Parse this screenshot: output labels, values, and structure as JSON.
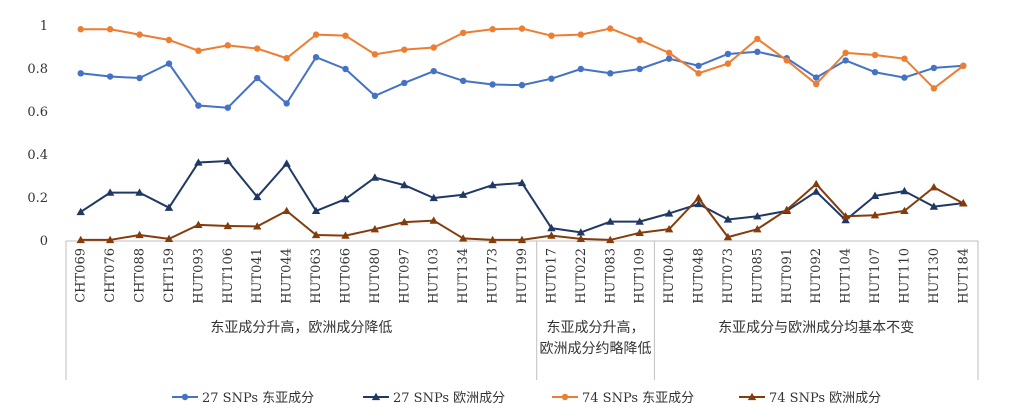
{
  "chart_data": {
    "type": "line",
    "ylim": [
      0,
      1
    ],
    "yticks": [
      0,
      0.2,
      0.4,
      0.6,
      0.8,
      1
    ],
    "ytick_labels": [
      "0",
      "0.2",
      "0.4",
      "0.6",
      "0.8",
      "1"
    ],
    "grid": false,
    "legend_position": "bottom",
    "categories": [
      "CHT069",
      "CHT076",
      "CHT088",
      "CHT159",
      "HUT093",
      "HUT106",
      "HUT041",
      "HUT044",
      "HUT063",
      "HUT066",
      "HUT080",
      "HUT097",
      "HUT103",
      "HUT134",
      "HUT173",
      "HUT199",
      "HUT017",
      "HUT022",
      "HUT083",
      "HUT109",
      "HUT040",
      "HUT048",
      "HUT073",
      "HUT085",
      "HUT091",
      "HUT092",
      "HUT104",
      "HUT107",
      "HUT110",
      "HUT130",
      "HUT184"
    ],
    "groups": [
      {
        "label": "东亚成分升高，欧洲成分降低",
        "start": 0,
        "end": 15
      },
      {
        "label_lines": [
          "东亚成分升高，",
          "欧洲成分约略降低"
        ],
        "start": 16,
        "end": 19
      },
      {
        "label": "东亚成分与欧洲成分均基本不变",
        "start": 20,
        "end": 30
      }
    ],
    "series": [
      {
        "name": "27 SNPs 东亚成分",
        "color": "#4472C4",
        "marker": "circle",
        "values": [
          0.78,
          0.765,
          0.758,
          0.825,
          0.63,
          0.62,
          0.758,
          0.64,
          0.855,
          0.8,
          0.675,
          0.735,
          0.79,
          0.745,
          0.728,
          0.725,
          0.755,
          0.8,
          0.78,
          0.8,
          0.848,
          0.815,
          0.87,
          0.88,
          0.85,
          0.76,
          0.84,
          0.785,
          0.76,
          0.805,
          0.815
        ]
      },
      {
        "name": "27 SNPs 欧洲成分",
        "color": "#203864",
        "marker": "triangle",
        "values": [
          0.135,
          0.225,
          0.225,
          0.155,
          0.365,
          0.372,
          0.205,
          0.36,
          0.14,
          0.195,
          0.295,
          0.26,
          0.2,
          0.215,
          0.26,
          0.27,
          0.06,
          0.04,
          0.09,
          0.09,
          0.128,
          0.172,
          0.1,
          0.115,
          0.14,
          0.23,
          0.097,
          0.21,
          0.232,
          0.16,
          0.176
        ]
      },
      {
        "name": "74 SNPs 东亚成分",
        "color": "#ED7D31",
        "marker": "circle",
        "values": [
          0.985,
          0.985,
          0.96,
          0.935,
          0.885,
          0.91,
          0.895,
          0.85,
          0.96,
          0.955,
          0.868,
          0.89,
          0.9,
          0.968,
          0.985,
          0.988,
          0.955,
          0.96,
          0.988,
          0.935,
          0.875,
          0.78,
          0.825,
          0.94,
          0.84,
          0.73,
          0.875,
          0.865,
          0.848,
          0.71,
          0.815
        ]
      },
      {
        "name": "74 SNPs 欧洲成分",
        "color": "#843C0C",
        "marker": "triangle",
        "values": [
          0.005,
          0.005,
          0.028,
          0.01,
          0.075,
          0.07,
          0.068,
          0.14,
          0.028,
          0.025,
          0.055,
          0.088,
          0.095,
          0.012,
          0.005,
          0.005,
          0.025,
          0.01,
          0.005,
          0.038,
          0.055,
          0.2,
          0.018,
          0.055,
          0.145,
          0.265,
          0.115,
          0.12,
          0.14,
          0.25,
          0.175
        ]
      }
    ]
  }
}
